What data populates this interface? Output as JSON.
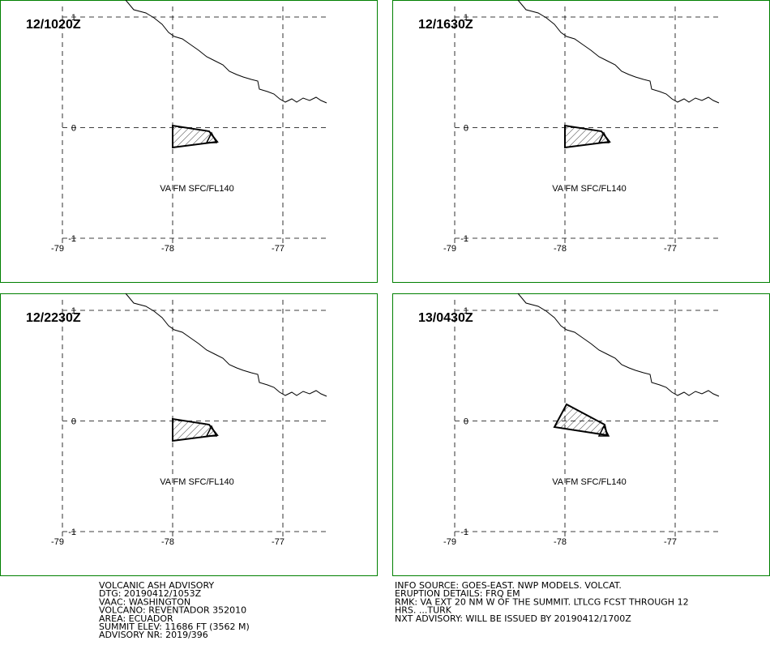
{
  "panels": [
    {
      "time": "12/1020Z",
      "label": "VA FM SFC/FL140"
    },
    {
      "time": "12/1630Z",
      "label": "VA FM SFC/FL140"
    },
    {
      "time": "12/2230Z",
      "label": "VA FM SFC/FL140"
    },
    {
      "time": "13/0430Z",
      "label": "VA FM SFC/FL140"
    }
  ],
  "lon_ticks": [
    -79,
    -78,
    -77
  ],
  "lat_ticks": [
    1,
    0,
    -1
  ],
  "advisory_left": [
    "VOLCANIC ASH ADVISORY",
    "DTG: 20190412/1053Z",
    "VAAC: WASHINGTON",
    "VOLCANO: REVENTADOR 352010",
    "AREA: ECUADOR",
    "SUMMIT ELEV: 11686 FT (3562 M)",
    "ADVISORY NR: 2019/396"
  ],
  "advisory_right": [
    "INFO SOURCE: GOES-EAST. NWP MODELS. VOLCAT.",
    "ERUPTION DETAILS: FRQ EM",
    "RMK: VA EXT 20 NM W OF THE SUMMIT. LTLCG FCST THROUGH 12",
    "HRS. ...TURK",
    "NXT ADVISORY: WILL BE ISSUED BY 20190412/1700Z"
  ]
}
